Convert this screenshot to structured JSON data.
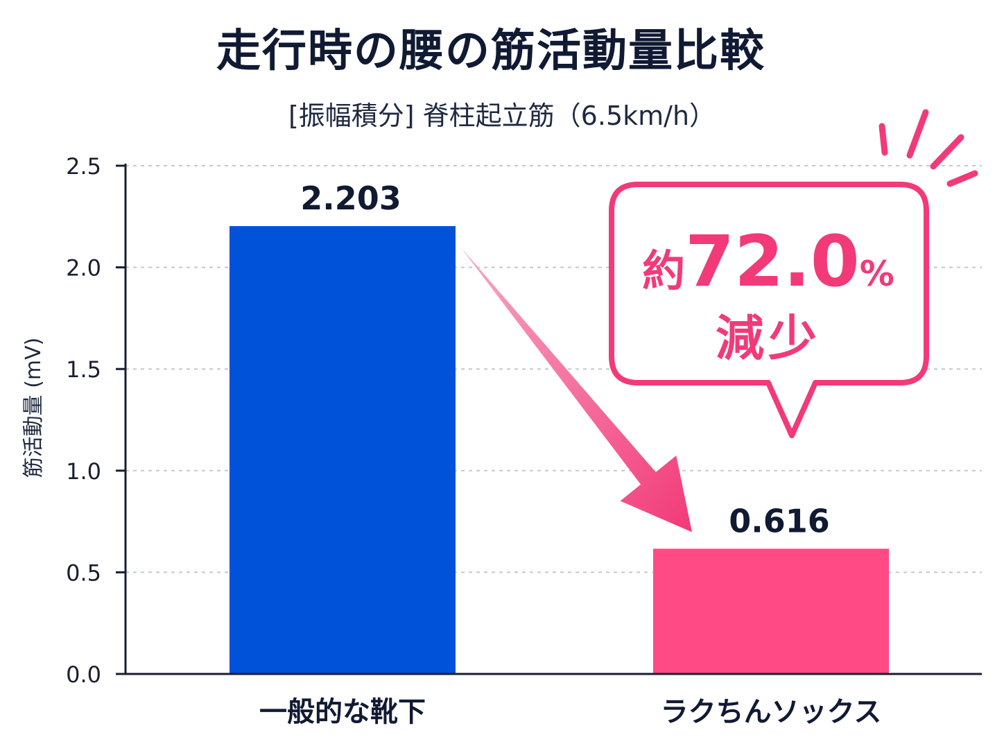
{
  "chart_data": {
    "type": "bar",
    "title": "走行時の腰の筋活動量比較",
    "subtitle": "[振幅積分] 脊柱起立筋（6.5km/h）",
    "xlabel": "",
    "ylabel": "筋活動量 (mV)",
    "ylim": [
      0,
      2.5
    ],
    "yticks": [
      "0.0",
      "0.5",
      "1.0",
      "1.5",
      "2.0",
      "2.5"
    ],
    "grid": true,
    "categories": [
      "一般的な靴下",
      "ラクちんソックス"
    ],
    "values": [
      2.203,
      0.616
    ],
    "value_labels": [
      "2.203",
      "0.616"
    ],
    "colors": [
      "#0052d9",
      "#ff4a85"
    ],
    "annotation": {
      "prefix": "約",
      "value": "72.0",
      "unit": "%",
      "text": "減少",
      "color": "#f23a78"
    }
  }
}
